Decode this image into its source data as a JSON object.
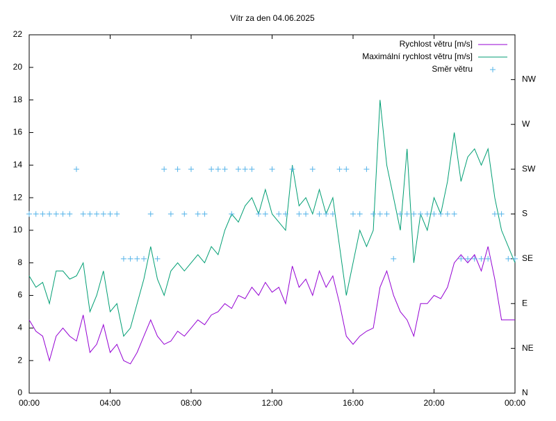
{
  "chart_data": {
    "type": "line",
    "title": "Vítr za den 04.06.2025",
    "x": [
      0,
      20,
      40,
      60,
      80,
      100,
      120,
      140,
      160,
      180,
      200,
      220,
      240,
      260,
      280,
      300,
      320,
      340,
      360,
      380,
      400,
      420,
      440,
      460,
      480,
      500,
      520,
      540,
      560,
      580,
      600,
      620,
      640,
      660,
      680,
      700,
      720,
      740,
      760,
      780,
      800,
      820,
      840,
      860,
      880,
      900,
      920,
      940,
      960,
      980,
      1000,
      1020,
      1040,
      1060,
      1080,
      1100,
      1120,
      1140,
      1160,
      1180,
      1200,
      1220,
      1240,
      1260,
      1280,
      1300,
      1320,
      1340,
      1360,
      1380,
      1400,
      1420,
      1440
    ],
    "xlim": [
      0,
      1440
    ],
    "xticks": [
      {
        "value": 0,
        "label": "00:00"
      },
      {
        "value": 240,
        "label": "04:00"
      },
      {
        "value": 480,
        "label": "08:00"
      },
      {
        "value": 720,
        "label": "12:00"
      },
      {
        "value": 960,
        "label": "16:00"
      },
      {
        "value": 1200,
        "label": "20:00"
      },
      {
        "value": 1440,
        "label": "00:00"
      }
    ],
    "ylim": [
      0,
      22
    ],
    "yticks": [
      0,
      2,
      4,
      6,
      8,
      10,
      12,
      14,
      16,
      18,
      20,
      22
    ],
    "y2lim": [
      0,
      8
    ],
    "y2ticks": [
      {
        "value": 0,
        "label": "N"
      },
      {
        "value": 1,
        "label": "NE"
      },
      {
        "value": 2,
        "label": "E"
      },
      {
        "value": 3,
        "label": "SE"
      },
      {
        "value": 4,
        "label": "S"
      },
      {
        "value": 5,
        "label": "SW"
      },
      {
        "value": 6,
        "label": "W"
      },
      {
        "value": 7,
        "label": "NW"
      }
    ],
    "legend": "top-right",
    "series": [
      {
        "name": "Rychlost větru [m/s]",
        "color": "#9400d3",
        "style": "line",
        "values": [
          4.5,
          3.8,
          3.5,
          2.0,
          3.5,
          4.0,
          3.5,
          3.2,
          4.8,
          2.5,
          3.0,
          4.2,
          2.5,
          3.0,
          2.0,
          1.8,
          2.5,
          3.5,
          4.5,
          3.5,
          3.0,
          3.2,
          3.8,
          3.5,
          4.0,
          4.5,
          4.2,
          4.8,
          5.0,
          5.5,
          5.2,
          6.0,
          5.8,
          6.5,
          6.0,
          6.8,
          6.2,
          6.5,
          5.5,
          7.8,
          6.5,
          7.0,
          6.0,
          7.5,
          6.5,
          7.2,
          5.5,
          3.5,
          3.0,
          3.5,
          3.8,
          4.0,
          6.5,
          7.5,
          6.0,
          5.0,
          4.5,
          3.5,
          5.5,
          5.5,
          6.0,
          5.8,
          6.5,
          8.0,
          8.5,
          8.0,
          8.5,
          7.5,
          9.0,
          7.0,
          4.5,
          4.5,
          4.5
        ]
      },
      {
        "name": "Maximální rychlost větru [m/s]",
        "color": "#009e73",
        "style": "line",
        "values": [
          7.2,
          6.5,
          6.8,
          5.5,
          7.5,
          7.5,
          7.0,
          7.2,
          8.0,
          5.0,
          6.0,
          7.5,
          5.0,
          5.5,
          3.5,
          4.0,
          5.5,
          7.0,
          9.0,
          7.0,
          6.0,
          7.5,
          8.0,
          7.5,
          8.0,
          8.5,
          8.0,
          9.0,
          8.5,
          10.0,
          11.0,
          10.5,
          11.5,
          12.0,
          11.0,
          12.5,
          11.0,
          10.5,
          10.0,
          14.0,
          11.5,
          12.0,
          11.0,
          12.5,
          11.0,
          12.0,
          9.0,
          6.0,
          8.0,
          10.0,
          9.0,
          10.0,
          18.0,
          14.0,
          12.0,
          10.0,
          15.0,
          8.0,
          11.0,
          10.0,
          12.0,
          11.0,
          13.0,
          16.0,
          13.0,
          14.5,
          15.0,
          14.0,
          15.0,
          12.0,
          10.0,
          9.0,
          8.0
        ]
      },
      {
        "name": "Směr větru",
        "color": "#56b4e9",
        "style": "points",
        "axis": "y2",
        "values": [
          4,
          4,
          4,
          4,
          4,
          4,
          4,
          5,
          4,
          4,
          4,
          4,
          4,
          4,
          3,
          3,
          3,
          3,
          4,
          3,
          5,
          4,
          5,
          4,
          5,
          4,
          4,
          5,
          5,
          5,
          4,
          5,
          5,
          5,
          4,
          4,
          5,
          4,
          4,
          5,
          4,
          4,
          5,
          4,
          4,
          4,
          5,
          5,
          4,
          4,
          5,
          4,
          4,
          4,
          3,
          4,
          4,
          4,
          4,
          4,
          4,
          4,
          4,
          4,
          3,
          3,
          3,
          3,
          3,
          4,
          4,
          3,
          3
        ]
      }
    ]
  }
}
